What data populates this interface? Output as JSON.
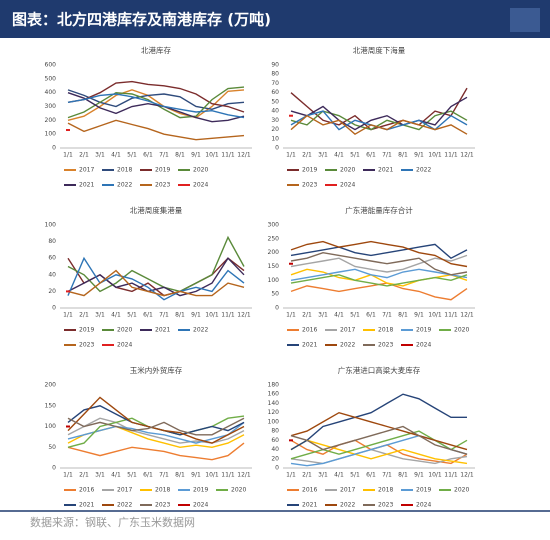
{
  "header": "图表：北方四港库存及南港库存 (万吨)",
  "source": "数据来源：钢联、广东玉米数据网",
  "chart_data": [
    {
      "type": "line",
      "title": "北港库存",
      "categories": [
        "1/1",
        "2/1",
        "3/1",
        "4/1",
        "5/1",
        "6/1",
        "7/1",
        "8/1",
        "9/1",
        "10/1",
        "11/1",
        "12/1"
      ],
      "ylim": [
        0,
        600
      ],
      "yticks": [
        0,
        100,
        200,
        300,
        400,
        500,
        600
      ],
      "grid": false,
      "series": [
        {
          "name": "2017",
          "color": "#d9822b",
          "values": [
            200,
            230,
            300,
            380,
            420,
            380,
            300,
            250,
            220,
            300,
            410,
            420
          ]
        },
        {
          "name": "2018",
          "color": "#2f4b7c",
          "values": [
            420,
            380,
            330,
            300,
            360,
            380,
            390,
            370,
            300,
            280,
            320,
            330
          ]
        },
        {
          "name": "2019",
          "color": "#7b2c2c",
          "values": [
            330,
            350,
            400,
            470,
            480,
            460,
            450,
            430,
            390,
            320,
            300,
            260
          ]
        },
        {
          "name": "2020",
          "color": "#5a8a3a",
          "values": [
            220,
            260,
            330,
            400,
            390,
            350,
            280,
            220,
            230,
            350,
            430,
            440
          ]
        },
        {
          "name": "2021",
          "color": "#3d2a5a",
          "values": [
            400,
            360,
            290,
            250,
            300,
            320,
            300,
            260,
            220,
            190,
            200,
            230
          ]
        },
        {
          "name": "2022",
          "color": "#2e75b6",
          "values": [
            330,
            350,
            380,
            390,
            370,
            340,
            300,
            280,
            260,
            270,
            240,
            220
          ]
        },
        {
          "name": "2023",
          "color": "#b5651d",
          "values": [
            180,
            120,
            160,
            200,
            170,
            140,
            100,
            80,
            60,
            70,
            80,
            90
          ]
        },
        {
          "name": "2024",
          "color": "#e02020",
          "values": [
            130,
            null,
            null,
            null,
            null,
            null,
            null,
            null,
            null,
            null,
            null,
            null
          ]
        }
      ]
    },
    {
      "type": "line",
      "title": "北港周度下海量",
      "categories": [
        "1/1",
        "2/1",
        "3/1",
        "4/1",
        "5/1",
        "6/1",
        "7/1",
        "8/1",
        "9/1",
        "10/1",
        "11/1",
        "12/1"
      ],
      "ylim": [
        0,
        90
      ],
      "yticks": [
        0,
        10,
        20,
        30,
        40,
        50,
        60,
        70,
        80,
        90
      ],
      "grid": false,
      "series": [
        {
          "name": "2019",
          "color": "#7b2c2c",
          "values": [
            60,
            45,
            30,
            25,
            35,
            20,
            25,
            30,
            25,
            40,
            35,
            65
          ]
        },
        {
          "name": "2020",
          "color": "#5a8a3a",
          "values": [
            30,
            25,
            40,
            35,
            25,
            20,
            30,
            25,
            20,
            35,
            40,
            30
          ]
        },
        {
          "name": "2021",
          "color": "#3d2a5a",
          "values": [
            40,
            35,
            45,
            30,
            20,
            30,
            35,
            25,
            30,
            25,
            45,
            55
          ]
        },
        {
          "name": "2022",
          "color": "#2e75b6",
          "values": [
            25,
            35,
            40,
            20,
            30,
            25,
            20,
            25,
            30,
            20,
            35,
            25
          ]
        },
        {
          "name": "2023",
          "color": "#b5651d",
          "values": [
            20,
            35,
            25,
            30,
            15,
            25,
            20,
            30,
            25,
            20,
            25,
            15
          ]
        },
        {
          "name": "2024",
          "color": "#e02020",
          "values": [
            35,
            null,
            null,
            null,
            null,
            null,
            null,
            null,
            null,
            null,
            null,
            null
          ]
        }
      ]
    },
    {
      "type": "line",
      "title": "北港周度集港量",
      "categories": [
        "1/1",
        "2/1",
        "3/1",
        "4/1",
        "5/1",
        "6/1",
        "7/1",
        "8/1",
        "9/1",
        "10/1",
        "11/1",
        "12/1"
      ],
      "ylim": [
        0,
        100
      ],
      "yticks": [
        0,
        20,
        40,
        60,
        80,
        100
      ],
      "grid": false,
      "series": [
        {
          "name": "2019",
          "color": "#7b2c2c",
          "values": [
            60,
            30,
            40,
            25,
            20,
            30,
            15,
            20,
            30,
            40,
            60,
            45
          ]
        },
        {
          "name": "2020",
          "color": "#5a8a3a",
          "values": [
            50,
            40,
            20,
            30,
            45,
            35,
            25,
            20,
            30,
            40,
            85,
            50
          ]
        },
        {
          "name": "2021",
          "color": "#3d2a5a",
          "values": [
            20,
            30,
            40,
            25,
            30,
            20,
            25,
            15,
            20,
            30,
            60,
            40
          ]
        },
        {
          "name": "2022",
          "color": "#2e75b6",
          "values": [
            15,
            60,
            30,
            40,
            35,
            25,
            10,
            20,
            25,
            20,
            45,
            30
          ]
        },
        {
          "name": "2023",
          "color": "#b5651d",
          "values": [
            20,
            15,
            30,
            45,
            25,
            20,
            15,
            20,
            15,
            15,
            30,
            25
          ]
        },
        {
          "name": "2024",
          "color": "#e02020",
          "values": [
            20,
            null,
            null,
            null,
            null,
            null,
            null,
            null,
            null,
            null,
            null,
            null
          ]
        }
      ]
    },
    {
      "type": "line",
      "title": "广东港能量库存合计",
      "categories": [
        "1/1",
        "2/1",
        "3/1",
        "4/1",
        "5/1",
        "6/1",
        "7/1",
        "8/1",
        "9/1",
        "10/1",
        "11/1",
        "12/1"
      ],
      "ylim": [
        0,
        300
      ],
      "yticks": [
        0,
        50,
        100,
        150,
        200,
        250,
        300
      ],
      "grid": false,
      "series": [
        {
          "name": "2016",
          "color": "#ed7d31",
          "values": [
            60,
            80,
            70,
            60,
            70,
            80,
            90,
            70,
            60,
            40,
            30,
            70
          ]
        },
        {
          "name": "2017",
          "color": "#a5a5a5",
          "values": [
            150,
            160,
            170,
            180,
            150,
            140,
            130,
            140,
            160,
            180,
            170,
            190
          ]
        },
        {
          "name": "2018",
          "color": "#ffc000",
          "values": [
            120,
            140,
            130,
            110,
            100,
            120,
            90,
            80,
            100,
            110,
            120,
            100
          ]
        },
        {
          "name": "2019",
          "color": "#5b9bd5",
          "values": [
            100,
            110,
            120,
            130,
            140,
            120,
            110,
            130,
            140,
            130,
            120,
            110
          ]
        },
        {
          "name": "2020",
          "color": "#70ad47",
          "values": [
            90,
            100,
            110,
            120,
            100,
            90,
            80,
            90,
            100,
            110,
            100,
            120
          ]
        },
        {
          "name": "2021",
          "color": "#264478",
          "values": [
            190,
            200,
            210,
            220,
            200,
            190,
            200,
            210,
            220,
            230,
            180,
            210
          ]
        },
        {
          "name": "2022",
          "color": "#9e480e",
          "values": [
            210,
            230,
            240,
            220,
            230,
            240,
            230,
            220,
            200,
            190,
            160,
            150
          ]
        },
        {
          "name": "2023",
          "color": "#7f6a5a",
          "values": [
            170,
            180,
            200,
            190,
            180,
            170,
            160,
            170,
            180,
            140,
            120,
            130
          ]
        },
        {
          "name": "2024",
          "color": "#c00000",
          "values": [
            160,
            null,
            null,
            null,
            null,
            null,
            null,
            null,
            null,
            null,
            null,
            null
          ]
        }
      ]
    },
    {
      "type": "line",
      "title": "玉米内外贸库存",
      "categories": [
        "1/1",
        "2/1",
        "3/1",
        "4/1",
        "5/1",
        "6/1",
        "7/1",
        "8/1",
        "9/1",
        "10/1",
        "11/1",
        "12/1"
      ],
      "ylim": [
        0,
        200
      ],
      "yticks": [
        0,
        50,
        100,
        150,
        200
      ],
      "grid": false,
      "series": [
        {
          "name": "2016",
          "color": "#ed7d31",
          "values": [
            50,
            40,
            30,
            40,
            50,
            45,
            40,
            30,
            25,
            20,
            30,
            60
          ]
        },
        {
          "name": "2017",
          "color": "#a5a5a5",
          "values": [
            80,
            100,
            120,
            110,
            90,
            80,
            70,
            60,
            65,
            60,
            70,
            90
          ]
        },
        {
          "name": "2018",
          "color": "#ffc000",
          "values": [
            60,
            80,
            90,
            100,
            85,
            70,
            60,
            50,
            55,
            50,
            60,
            80
          ]
        },
        {
          "name": "2019",
          "color": "#5b9bd5",
          "values": [
            70,
            80,
            90,
            100,
            95,
            85,
            80,
            70,
            60,
            70,
            80,
            110
          ]
        },
        {
          "name": "2020",
          "color": "#70ad47",
          "values": [
            50,
            60,
            100,
            110,
            120,
            100,
            90,
            80,
            90,
            100,
            120,
            125
          ]
        },
        {
          "name": "2021",
          "color": "#264478",
          "values": [
            110,
            140,
            150,
            130,
            110,
            100,
            90,
            80,
            90,
            100,
            90,
            110
          ]
        },
        {
          "name": "2022",
          "color": "#9e480e",
          "values": [
            90,
            130,
            170,
            140,
            110,
            100,
            90,
            85,
            70,
            60,
            80,
            100
          ]
        },
        {
          "name": "2023",
          "color": "#7f6a5a",
          "values": [
            120,
            100,
            110,
            100,
            90,
            95,
            110,
            90,
            80,
            80,
            100,
            120
          ]
        },
        {
          "name": "2024",
          "color": "#c00000",
          "values": [
            100,
            null,
            null,
            null,
            null,
            null,
            null,
            null,
            null,
            null,
            null,
            null
          ]
        }
      ]
    },
    {
      "type": "line",
      "title": "广东港进口高粱大麦库存",
      "categories": [
        "1/1",
        "2/1",
        "3/1",
        "4/1",
        "5/1",
        "6/1",
        "7/1",
        "8/1",
        "9/1",
        "10/1",
        "11/1",
        "12/1"
      ],
      "ylim": [
        0,
        180
      ],
      "yticks": [
        0,
        20,
        40,
        60,
        80,
        100,
        120,
        140,
        160,
        180
      ],
      "grid": false,
      "series": [
        {
          "name": "2016",
          "color": "#ed7d31",
          "values": [
            60,
            40,
            30,
            50,
            60,
            40,
            50,
            30,
            20,
            15,
            10,
            30
          ]
        },
        {
          "name": "2017",
          "color": "#a5a5a5",
          "values": [
            20,
            15,
            10,
            20,
            30,
            40,
            30,
            20,
            15,
            10,
            20,
            25
          ]
        },
        {
          "name": "2018",
          "color": "#ffc000",
          "values": [
            40,
            60,
            50,
            40,
            30,
            20,
            30,
            40,
            30,
            20,
            15,
            10
          ]
        },
        {
          "name": "2019",
          "color": "#5b9bd5",
          "values": [
            10,
            5,
            10,
            20,
            30,
            40,
            50,
            60,
            70,
            60,
            40,
            30
          ]
        },
        {
          "name": "2020",
          "color": "#70ad47",
          "values": [
            20,
            30,
            40,
            30,
            40,
            50,
            60,
            70,
            80,
            60,
            40,
            60
          ]
        },
        {
          "name": "2021",
          "color": "#264478",
          "values": [
            40,
            60,
            90,
            100,
            110,
            120,
            140,
            160,
            150,
            130,
            110,
            110
          ]
        },
        {
          "name": "2022",
          "color": "#9e480e",
          "values": [
            70,
            80,
            100,
            120,
            110,
            100,
            90,
            80,
            70,
            60,
            50,
            40
          ]
        },
        {
          "name": "2023",
          "color": "#7f6a5a",
          "values": [
            70,
            60,
            40,
            50,
            60,
            70,
            80,
            90,
            70,
            50,
            40,
            30
          ]
        },
        {
          "name": "2024",
          "color": "#c00000",
          "values": [
            60,
            null,
            null,
            null,
            null,
            null,
            null,
            null,
            null,
            null,
            null,
            null
          ]
        }
      ]
    }
  ]
}
